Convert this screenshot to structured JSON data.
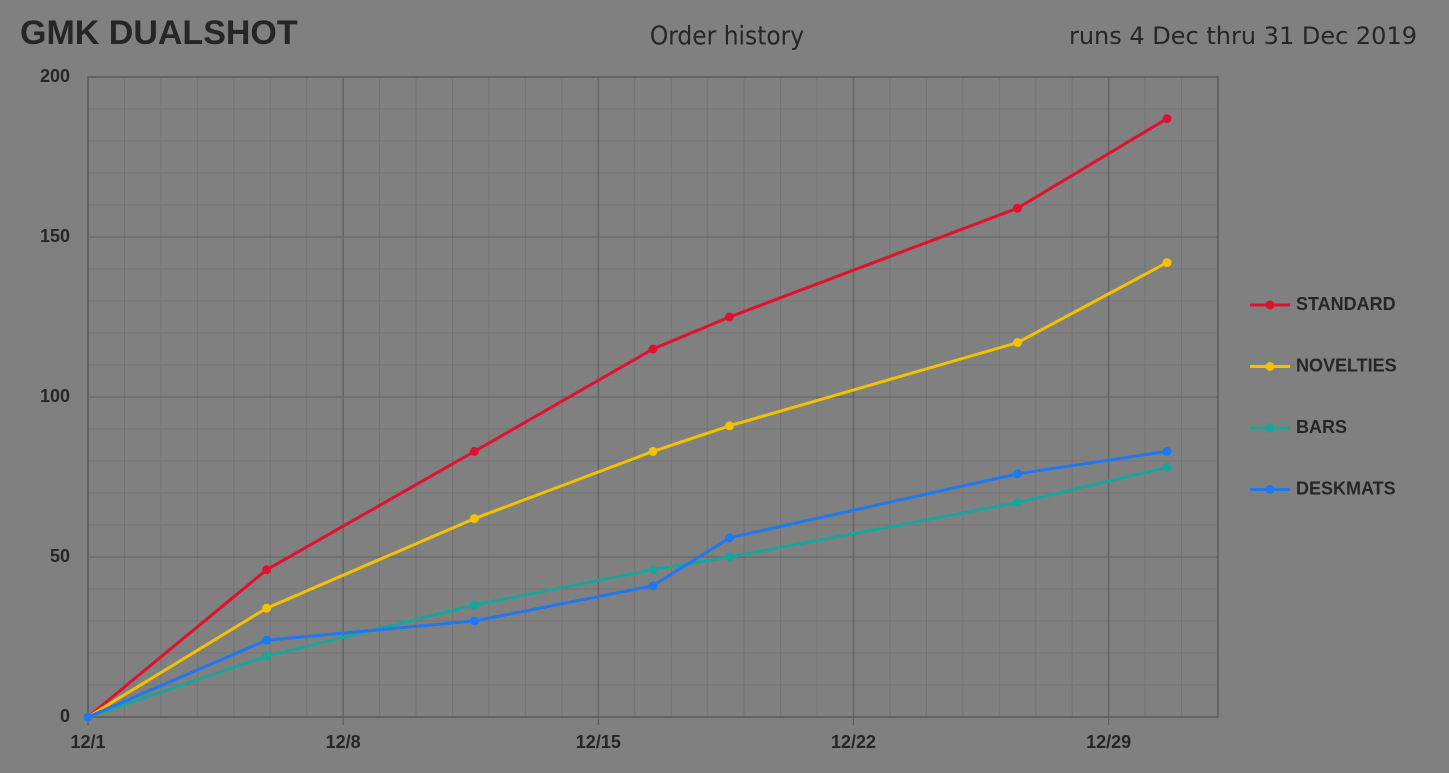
{
  "chart_data": {
    "type": "line",
    "title": "GMK DUALSHOT",
    "subtitle": "Order history",
    "annotation": "runs 4 Dec thru 31 Dec 2019",
    "x": [
      1,
      5.9,
      11.6,
      16.5,
      18.6,
      26.5,
      30.6
    ],
    "xlim": [
      1,
      32
    ],
    "xticks": [
      {
        "value": 1,
        "label": "12/1"
      },
      {
        "value": 8,
        "label": "12/8"
      },
      {
        "value": 15,
        "label": "12/15"
      },
      {
        "value": 22,
        "label": "12/22"
      },
      {
        "value": 29,
        "label": "12/29"
      }
    ],
    "ylim": [
      0,
      200
    ],
    "yticks": [
      0,
      50,
      100,
      150,
      200
    ],
    "grid": true,
    "legend": "right",
    "series": [
      {
        "name": "STANDARD",
        "color": "#e0102f",
        "values": [
          0,
          46,
          83,
          115,
          125,
          159,
          187
        ]
      },
      {
        "name": "NOVELTIES",
        "color": "#f2c200",
        "values": [
          0,
          34,
          62,
          83,
          91,
          117,
          142
        ]
      },
      {
        "name": "BARS",
        "color": "#1aa59a",
        "values": [
          0,
          19,
          35,
          46,
          50,
          67,
          78
        ]
      },
      {
        "name": "DESKMATS",
        "color": "#1f78f0",
        "values": [
          0,
          24,
          30,
          41,
          56,
          76,
          83
        ]
      }
    ]
  }
}
